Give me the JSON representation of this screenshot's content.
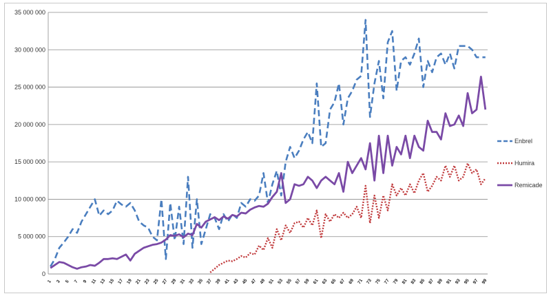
{
  "chart_data": {
    "type": "line",
    "title": "",
    "xlabel": "",
    "ylabel": "",
    "ylim": [
      0,
      35000000
    ],
    "yticks": [
      "0",
      "5 000 000",
      "10 000 000",
      "15 000 000",
      "20 000 000",
      "25 000 000",
      "30 000 000",
      "35 000 000"
    ],
    "xticks": [
      "1",
      "3",
      "5",
      "7",
      "9",
      "11",
      "13",
      "15",
      "17",
      "19",
      "21",
      "23",
      "25",
      "27",
      "29",
      "31",
      "33",
      "35",
      "37",
      "39",
      "41",
      "43",
      "45",
      "47",
      "49",
      "51",
      "53",
      "55",
      "57",
      "59",
      "61",
      "63",
      "65",
      "67",
      "69",
      "71",
      "73",
      "75",
      "77",
      "79",
      "81",
      "83",
      "85",
      "87",
      "89",
      "91",
      "93",
      "95",
      "97",
      "99"
    ],
    "grid": "horizontal",
    "legend_position": "right",
    "x": [
      1,
      2,
      3,
      4,
      5,
      6,
      7,
      8,
      9,
      10,
      11,
      12,
      13,
      14,
      15,
      16,
      17,
      18,
      19,
      20,
      21,
      22,
      23,
      24,
      25,
      26,
      27,
      28,
      29,
      30,
      31,
      32,
      33,
      34,
      35,
      36,
      37,
      38,
      39,
      40,
      41,
      42,
      43,
      44,
      45,
      46,
      47,
      48,
      49,
      50,
      51,
      52,
      53,
      54,
      55,
      56,
      57,
      58,
      59,
      60,
      61,
      62,
      63,
      64,
      65,
      66,
      67,
      68,
      69,
      70,
      71,
      72,
      73,
      74,
      75,
      76,
      77,
      78,
      79,
      80,
      81,
      82,
      83,
      84,
      85,
      86,
      87,
      88,
      89,
      90,
      91,
      92,
      93,
      94,
      95,
      96,
      97,
      98,
      99
    ],
    "series": [
      {
        "name": "Enbrel",
        "color": "#4a7ebf",
        "dash": "dashed",
        "values": [
          1000000,
          2000000,
          3500000,
          4200000,
          5000000,
          6000000,
          5500000,
          7000000,
          8000000,
          9000000,
          10000000,
          7800000,
          8500000,
          8000000,
          8500000,
          9800000,
          9300000,
          9000000,
          9500000,
          8500000,
          7000000,
          6500000,
          6200000,
          5000000,
          4500000,
          10000000,
          2000000,
          9500000,
          4500000,
          9000000,
          4000000,
          13000000,
          3500000,
          10000000,
          4000000,
          6000000,
          8000000,
          7500000,
          6000000,
          8000000,
          7000000,
          8000000,
          7500000,
          9500000,
          9000000,
          10000000,
          9800000,
          10500000,
          13500000,
          9500000,
          12000000,
          13800000,
          10500000,
          15000000,
          17000000,
          15500000,
          16500000,
          18000000,
          19000000,
          17500000,
          25500000,
          17000000,
          17500000,
          22000000,
          23000000,
          25500000,
          20000000,
          23500000,
          24500000,
          26000000,
          26500000,
          34000000,
          21000000,
          25500000,
          28500000,
          23500000,
          31000000,
          32500000,
          24500000,
          28500000,
          29000000,
          28000000,
          29500000,
          31500000,
          25000000,
          28500000,
          27000000,
          29000000,
          29500000,
          28000000,
          29500000,
          27500000,
          30500000,
          30500000,
          30500000,
          30000000,
          29000000,
          29000000,
          29000000
        ]
      },
      {
        "name": "Humira",
        "color": "#c0393b",
        "dash": "dotted",
        "values": [
          null,
          null,
          null,
          null,
          null,
          null,
          null,
          null,
          null,
          null,
          null,
          null,
          null,
          null,
          null,
          null,
          null,
          null,
          null,
          null,
          null,
          null,
          null,
          null,
          null,
          null,
          null,
          null,
          null,
          null,
          null,
          null,
          null,
          null,
          null,
          null,
          200000,
          700000,
          1200000,
          1500000,
          1800000,
          1700000,
          2000000,
          2400000,
          2200000,
          2800000,
          2600000,
          3800000,
          3200000,
          4800000,
          3500000,
          6000000,
          4500000,
          6500000,
          5500000,
          6800000,
          7000000,
          6200000,
          7500000,
          6500000,
          8500000,
          4800000,
          8000000,
          7000000,
          8000000,
          7500000,
          8200000,
          7500000,
          8000000,
          9000000,
          7500000,
          11800000,
          6800000,
          10500000,
          7500000,
          10500000,
          8500000,
          12000000,
          10500000,
          11500000,
          10500000,
          12000000,
          10800000,
          12500000,
          13500000,
          11000000,
          11800000,
          13000000,
          12500000,
          14500000,
          13000000,
          14500000,
          12500000,
          13000000,
          14800000,
          13500000,
          14000000,
          12000000,
          12800000
        ]
      },
      {
        "name": "Remicade",
        "color": "#7a4aa6",
        "dash": "solid",
        "values": [
          800000,
          1200000,
          1600000,
          1500000,
          1200000,
          900000,
          700000,
          900000,
          1000000,
          1200000,
          1100000,
          1500000,
          2000000,
          2000000,
          2100000,
          2000000,
          2300000,
          2600000,
          1800000,
          2700000,
          3100000,
          3500000,
          3700000,
          3900000,
          4000000,
          4200000,
          4600000,
          5200000,
          5100000,
          5300000,
          4900000,
          5400000,
          5200000,
          6700000,
          6200000,
          7000000,
          7300000,
          7600000,
          7200000,
          7700000,
          7400000,
          7900000,
          7700000,
          8200000,
          8100000,
          8600000,
          8900000,
          9100000,
          9000000,
          9400000,
          10300000,
          11000000,
          13500000,
          9500000,
          10000000,
          12000000,
          11800000,
          12000000,
          13000000,
          12500000,
          11500000,
          12500000,
          13000000,
          12500000,
          12000000,
          13500000,
          11000000,
          15000000,
          13500000,
          14500000,
          15500000,
          14000000,
          17500000,
          12500000,
          18500000,
          13500000,
          18500000,
          14500000,
          17000000,
          16000000,
          18500000,
          15500000,
          18500000,
          17000000,
          16500000,
          20500000,
          19000000,
          19000000,
          18000000,
          21500000,
          19800000,
          20000000,
          21200000,
          19800000,
          24200000,
          21500000,
          22000000,
          26400000,
          22000000
        ]
      }
    ]
  }
}
